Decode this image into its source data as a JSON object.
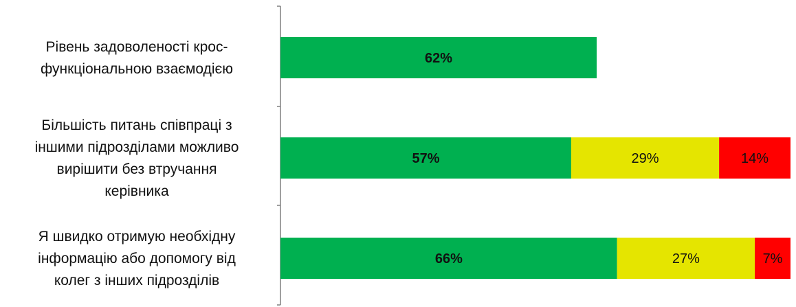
{
  "colors": {
    "green": "#00b050",
    "yellow": "#e5e500",
    "red": "#ff0000",
    "axis": "#808080",
    "text": "#111111"
  },
  "chart_data": {
    "type": "bar",
    "orientation": "horizontal",
    "stacked": true,
    "categories": [
      [
        "Рівень задоволеності крос-",
        "функціональною взаємодією"
      ],
      [
        "Більшість питань співпраці з",
        "іншими підрозділами можливо",
        "вирішити без втручання",
        "керівника"
      ],
      [
        "Я швидко отримую необхідну",
        "інформацію або допомогу від",
        "колег з інших підрозділів"
      ]
    ],
    "series": [
      {
        "color": "#00b050",
        "values": [
          62,
          57,
          66
        ],
        "labels": [
          "62%",
          "57%",
          "66%"
        ],
        "label_bold": true
      },
      {
        "color": "#e5e500",
        "values": [
          0,
          29,
          27
        ],
        "labels": [
          "",
          "29%",
          "27%"
        ],
        "label_bold": false
      },
      {
        "color": "#ff0000",
        "values": [
          0,
          14,
          7
        ],
        "labels": [
          "",
          "14%",
          "7%"
        ],
        "label_bold": false
      }
    ],
    "xlim": [
      0,
      100
    ],
    "grid": false,
    "legend": "none"
  }
}
